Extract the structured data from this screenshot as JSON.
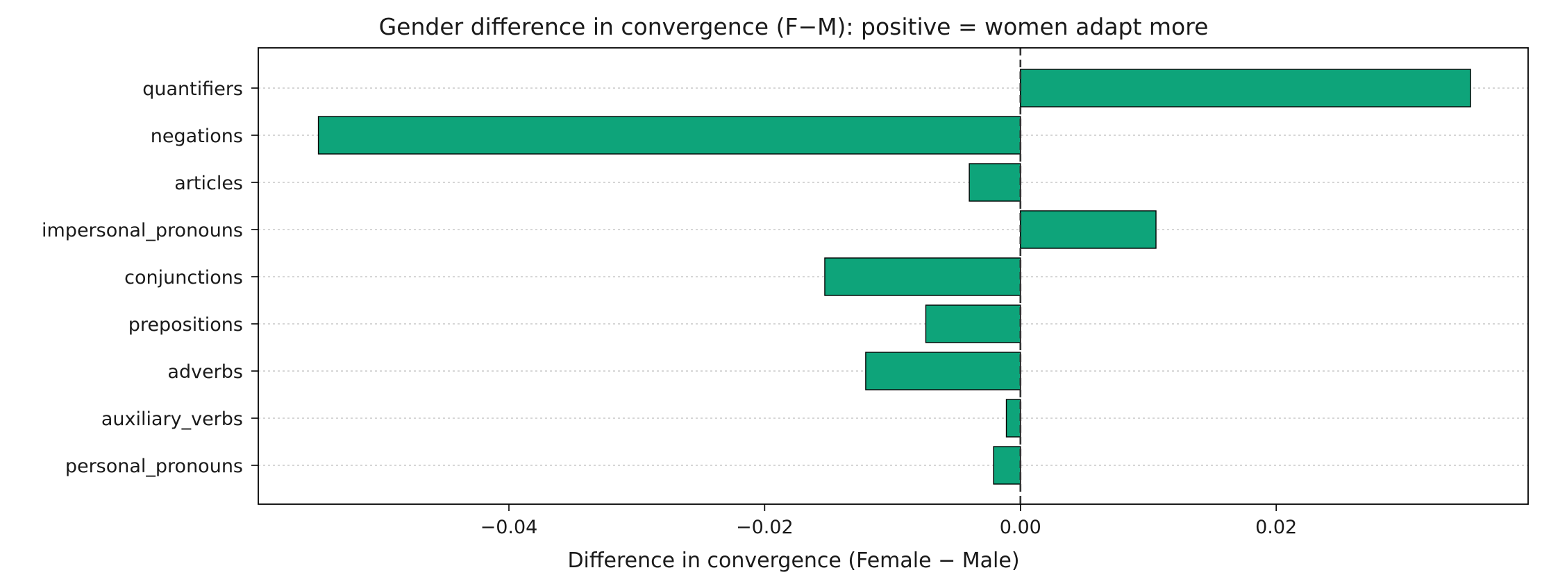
{
  "chart_data": {
    "type": "bar",
    "orientation": "horizontal",
    "title": "Gender difference in convergence (F−M): positive = women adapt more",
    "xlabel": "Difference in convergence (Female − Male)",
    "ylabel": "",
    "categories": [
      "quantifiers",
      "negations",
      "articles",
      "impersonal_pronouns",
      "conjunctions",
      "prepositions",
      "adverbs",
      "auxiliary_verbs",
      "personal_pronouns"
    ],
    "values": [
      0.0352,
      -0.0549,
      -0.004,
      0.0106,
      -0.0153,
      -0.0074,
      -0.0121,
      -0.0011,
      -0.0021
    ],
    "xlim": [
      -0.0596,
      0.0397
    ],
    "xticks": [
      -0.04,
      -0.02,
      0.0,
      0.02
    ],
    "xtick_labels": [
      "−0.04",
      "−0.02",
      "0.00",
      "0.02"
    ],
    "reference_line": {
      "x": 0.0,
      "style": "dashed"
    },
    "grid": {
      "x": false,
      "y": true,
      "style": "dotted"
    },
    "legend": "none",
    "colors": {
      "bar": "#0ea47a",
      "bar_edge": "#000000",
      "grid": "#c8c8c8",
      "reference_line": "#333333"
    }
  }
}
